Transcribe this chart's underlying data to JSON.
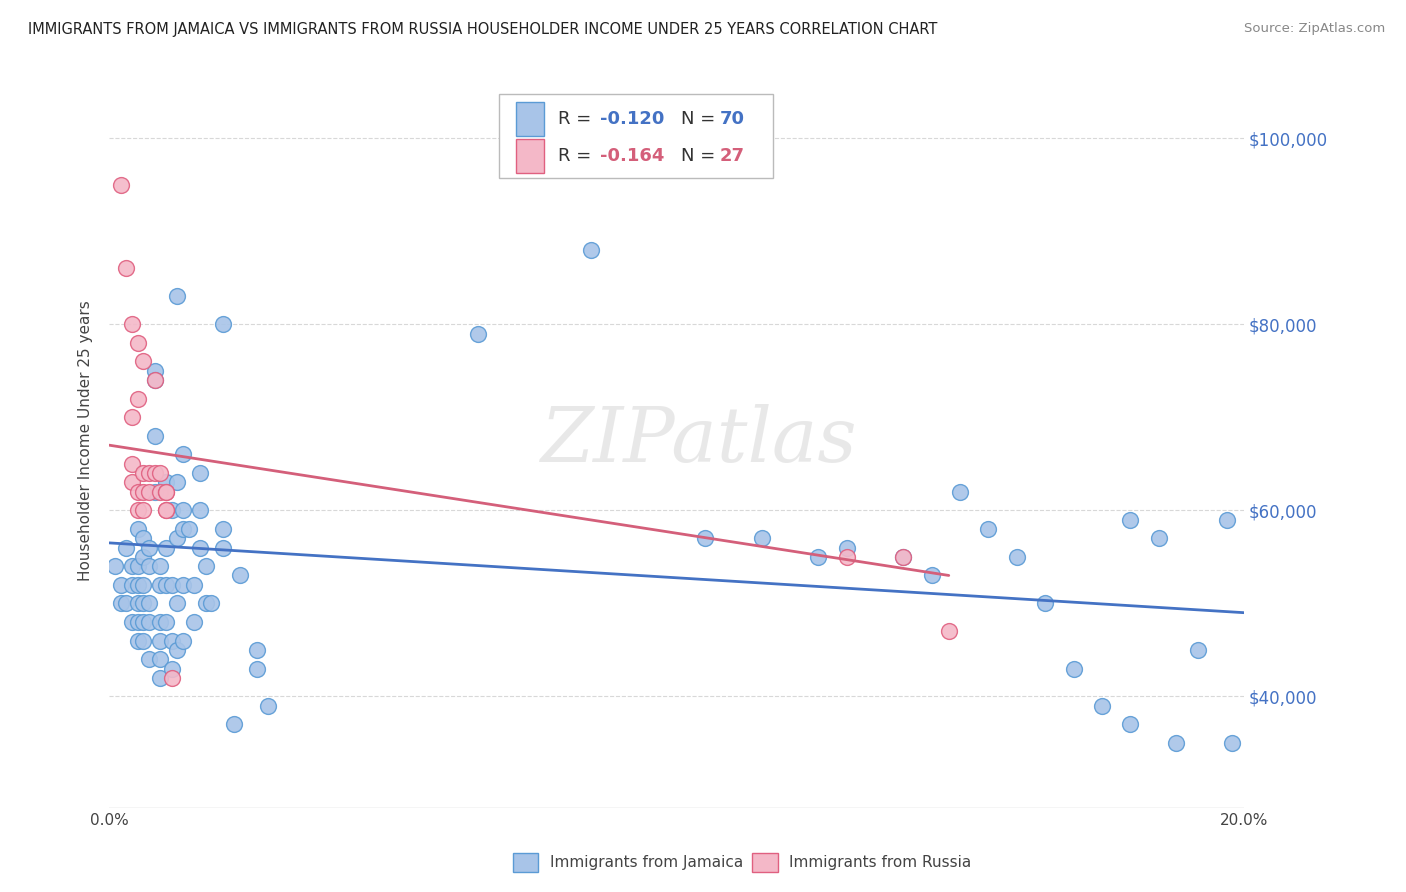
{
  "title": "IMMIGRANTS FROM JAMAICA VS IMMIGRANTS FROM RUSSIA HOUSEHOLDER INCOME UNDER 25 YEARS CORRELATION CHART",
  "source": "Source: ZipAtlas.com",
  "ylabel": "Householder Income Under 25 years",
  "watermark": "ZIPatlas",
  "xlim": [
    0.0,
    0.2
  ],
  "ylim": [
    28000,
    107000
  ],
  "jamaica_color": "#a8c4e8",
  "jamaica_edge_color": "#5b9bd5",
  "russia_color": "#f4b8c8",
  "russia_edge_color": "#e06080",
  "jamaica_line_color": "#4472c4",
  "russia_line_color": "#d45f7a",
  "ytick_color": "#4472c4",
  "background_color": "#ffffff",
  "grid_color": "#d8d8d8",
  "jamaica_scatter": [
    [
      0.001,
      54000
    ],
    [
      0.002,
      52000
    ],
    [
      0.002,
      50000
    ],
    [
      0.003,
      56000
    ],
    [
      0.003,
      50000
    ],
    [
      0.004,
      54000
    ],
    [
      0.004,
      52000
    ],
    [
      0.004,
      48000
    ],
    [
      0.005,
      58000
    ],
    [
      0.005,
      54000
    ],
    [
      0.005,
      52000
    ],
    [
      0.005,
      50000
    ],
    [
      0.005,
      48000
    ],
    [
      0.005,
      46000
    ],
    [
      0.006,
      57000
    ],
    [
      0.006,
      55000
    ],
    [
      0.006,
      52000
    ],
    [
      0.006,
      50000
    ],
    [
      0.006,
      48000
    ],
    [
      0.006,
      46000
    ],
    [
      0.007,
      56000
    ],
    [
      0.007,
      54000
    ],
    [
      0.007,
      50000
    ],
    [
      0.007,
      48000
    ],
    [
      0.007,
      44000
    ],
    [
      0.008,
      75000
    ],
    [
      0.008,
      74000
    ],
    [
      0.008,
      68000
    ],
    [
      0.008,
      62000
    ],
    [
      0.009,
      54000
    ],
    [
      0.009,
      52000
    ],
    [
      0.009,
      48000
    ],
    [
      0.009,
      46000
    ],
    [
      0.009,
      44000
    ],
    [
      0.009,
      42000
    ],
    [
      0.01,
      63000
    ],
    [
      0.01,
      56000
    ],
    [
      0.01,
      52000
    ],
    [
      0.01,
      48000
    ],
    [
      0.011,
      60000
    ],
    [
      0.011,
      52000
    ],
    [
      0.011,
      46000
    ],
    [
      0.011,
      43000
    ],
    [
      0.012,
      83000
    ],
    [
      0.012,
      63000
    ],
    [
      0.012,
      57000
    ],
    [
      0.012,
      50000
    ],
    [
      0.012,
      45000
    ],
    [
      0.013,
      66000
    ],
    [
      0.013,
      60000
    ],
    [
      0.013,
      58000
    ],
    [
      0.013,
      52000
    ],
    [
      0.013,
      46000
    ],
    [
      0.014,
      58000
    ],
    [
      0.015,
      52000
    ],
    [
      0.015,
      48000
    ],
    [
      0.016,
      64000
    ],
    [
      0.016,
      60000
    ],
    [
      0.016,
      56000
    ],
    [
      0.017,
      54000
    ],
    [
      0.017,
      50000
    ],
    [
      0.018,
      50000
    ],
    [
      0.02,
      80000
    ],
    [
      0.02,
      58000
    ],
    [
      0.02,
      56000
    ],
    [
      0.022,
      37000
    ],
    [
      0.023,
      53000
    ],
    [
      0.026,
      45000
    ],
    [
      0.026,
      43000
    ],
    [
      0.028,
      39000
    ],
    [
      0.065,
      79000
    ],
    [
      0.085,
      88000
    ],
    [
      0.105,
      57000
    ],
    [
      0.115,
      57000
    ],
    [
      0.125,
      55000
    ],
    [
      0.13,
      56000
    ],
    [
      0.14,
      55000
    ],
    [
      0.145,
      53000
    ],
    [
      0.15,
      62000
    ],
    [
      0.155,
      58000
    ],
    [
      0.16,
      55000
    ],
    [
      0.165,
      50000
    ],
    [
      0.17,
      43000
    ],
    [
      0.175,
      39000
    ],
    [
      0.18,
      59000
    ],
    [
      0.18,
      37000
    ],
    [
      0.185,
      57000
    ],
    [
      0.188,
      35000
    ],
    [
      0.192,
      45000
    ],
    [
      0.197,
      59000
    ],
    [
      0.198,
      35000
    ]
  ],
  "russia_scatter": [
    [
      0.002,
      95000
    ],
    [
      0.003,
      86000
    ],
    [
      0.004,
      80000
    ],
    [
      0.004,
      70000
    ],
    [
      0.004,
      65000
    ],
    [
      0.004,
      63000
    ],
    [
      0.005,
      78000
    ],
    [
      0.005,
      72000
    ],
    [
      0.005,
      62000
    ],
    [
      0.005,
      60000
    ],
    [
      0.006,
      76000
    ],
    [
      0.006,
      64000
    ],
    [
      0.006,
      62000
    ],
    [
      0.006,
      60000
    ],
    [
      0.007,
      64000
    ],
    [
      0.007,
      62000
    ],
    [
      0.008,
      74000
    ],
    [
      0.008,
      64000
    ],
    [
      0.009,
      64000
    ],
    [
      0.009,
      62000
    ],
    [
      0.01,
      62000
    ],
    [
      0.01,
      60000
    ],
    [
      0.01,
      62000
    ],
    [
      0.01,
      60000
    ],
    [
      0.011,
      42000
    ],
    [
      0.13,
      55000
    ],
    [
      0.14,
      55000
    ],
    [
      0.148,
      47000
    ]
  ],
  "blue_line_x": [
    0.0,
    0.2
  ],
  "blue_line_y": [
    56500,
    49000
  ],
  "pink_line_x": [
    0.0,
    0.148
  ],
  "pink_line_y": [
    67000,
    53000
  ]
}
